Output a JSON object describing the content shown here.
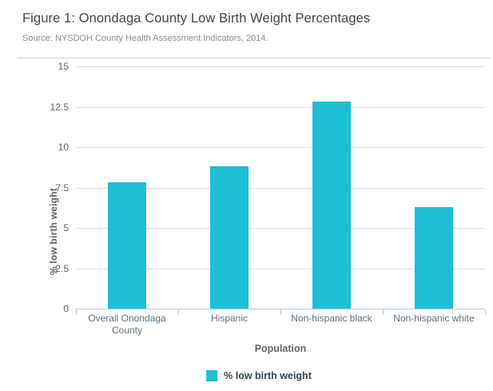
{
  "chart_data": {
    "type": "bar",
    "title": "Figure 1: Onondaga County Low Birth Weight Percentages",
    "subtitle": "Source: NYSDOH County Health Assessment Indicators, 2014.",
    "xlabel": "Population",
    "ylabel": "% low birth weight",
    "categories": [
      "Overall Onondaga County",
      "Hispanic",
      "Non-hispanic black",
      "Non-hispanic white"
    ],
    "series": [
      {
        "name": "% low birth weight",
        "values": [
          7.8,
          8.8,
          12.8,
          6.3
        ],
        "color": "#1ebed6"
      }
    ],
    "ylim": [
      0,
      15
    ],
    "yticks": [
      0,
      2.5,
      5,
      7.5,
      10,
      12.5,
      15
    ],
    "grid": true,
    "legend_position": "bottom"
  },
  "legend": {
    "items": [
      {
        "label": "% low birth weight",
        "color": "#1ebed6"
      }
    ]
  },
  "colors": {
    "bar": "#1ebed6",
    "axis_line": "#b5c9da",
    "gridline": "#dcdcdc",
    "divider": "#d4d4d4",
    "title_text": "#3c4a53",
    "subtitle_text": "#8e8c94",
    "ytick_text": "#666666",
    "category_text": "#5e707d",
    "axis_title_text": "#6a625b",
    "legend_text": "#37444e"
  }
}
